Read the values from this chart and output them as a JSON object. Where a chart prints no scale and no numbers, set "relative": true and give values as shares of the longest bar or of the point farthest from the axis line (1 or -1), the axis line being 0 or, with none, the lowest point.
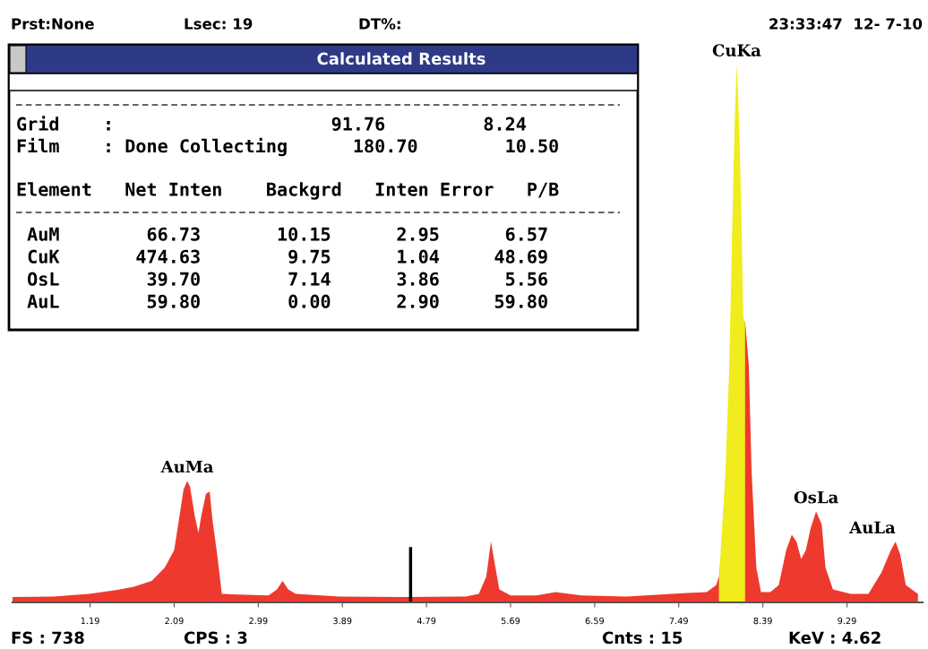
{
  "chart_data": {
    "type": "area",
    "relative": true,
    "xlim": [
      0.36,
      10.1
    ],
    "xticks": [
      1.19,
      2.09,
      2.99,
      3.89,
      4.79,
      5.69,
      6.59,
      7.49,
      8.39,
      9.29
    ],
    "series": [
      {
        "color": "#ee3a2e",
        "x": [
          0.36,
          0.8,
          1.18,
          1.47,
          1.66,
          1.85,
          1.99,
          2.09,
          2.14,
          2.19,
          2.23,
          2.26,
          2.31,
          2.35,
          2.38,
          2.43,
          2.47,
          2.5,
          2.55,
          2.6,
          2.71,
          3.1,
          3.19,
          3.25,
          3.31,
          3.39,
          3.86,
          4.54,
          5.21,
          5.35,
          5.43,
          5.48,
          5.52,
          5.57,
          5.69,
          5.97,
          6.17,
          6.45,
          6.93,
          7.41,
          7.79,
          7.89,
          7.92,
          8.2,
          8.24,
          8.27,
          8.32,
          8.37,
          8.47,
          8.56,
          8.64,
          8.7,
          8.75,
          8.8,
          8.85,
          8.9,
          8.96,
          9.02,
          9.06,
          9.14,
          9.33,
          9.52,
          9.66,
          9.76,
          9.81,
          9.86,
          9.92,
          10.05
        ],
        "values": [
          0.01,
          0.011,
          0.016,
          0.023,
          0.029,
          0.04,
          0.065,
          0.097,
          0.153,
          0.21,
          0.226,
          0.215,
          0.161,
          0.129,
          0.161,
          0.202,
          0.206,
          0.153,
          0.089,
          0.016,
          0.015,
          0.013,
          0.024,
          0.04,
          0.024,
          0.016,
          0.011,
          0.01,
          0.011,
          0.016,
          0.048,
          0.113,
          0.073,
          0.024,
          0.013,
          0.013,
          0.019,
          0.013,
          0.011,
          0.016,
          0.019,
          0.032,
          0.048,
          0.524,
          0.44,
          0.242,
          0.065,
          0.019,
          0.019,
          0.032,
          0.097,
          0.126,
          0.113,
          0.081,
          0.097,
          0.137,
          0.169,
          0.145,
          0.065,
          0.024,
          0.016,
          0.016,
          0.056,
          0.097,
          0.113,
          0.089,
          0.032,
          0.016
        ]
      },
      {
        "color": "#f0ec1e",
        "x": [
          7.92,
          7.95,
          7.99,
          8.01,
          8.03,
          8.06,
          8.08,
          8.09,
          8.11,
          8.12,
          8.14,
          8.16,
          8.18,
          8.2
        ],
        "values": [
          0.04,
          0.129,
          0.242,
          0.34,
          0.432,
          0.674,
          0.831,
          0.9,
          1.0,
          0.968,
          0.871,
          0.723,
          0.532,
          0.516
        ]
      }
    ],
    "ref_lines": [
      {
        "axis": "x",
        "value": 4.62,
        "color": "#000000"
      }
    ],
    "annotations": [
      "Prst:None",
      "Lsec: 19",
      "DT%:",
      "23:33:47  12- 7-10",
      "FS : 738",
      "CPS : 3",
      "Cnts : 15",
      "KeV : 4.62",
      "Calculated Results",
      "Grid    :                    91.76         8.24",
      "Film    : Done Collecting      180.70        10.50",
      "Element   Net Inten    Backgrd   Inten Error   P/B",
      " AuM        66.73       10.15      2.95      6.57",
      " CuK       474.63        9.75      1.04     48.69",
      " OsL        39.70        7.14      3.86      5.56",
      " AuL        59.80        0.00      2.90     59.80",
      {
        "text": "AuMa",
        "x": 2.23,
        "y": 0.226
      },
      {
        "text": "CuKa",
        "x": 8.11,
        "y": 1.0
      },
      {
        "text": "OsLa",
        "x": 8.96,
        "y": 0.169
      },
      {
        "text": "AuLa",
        "x": 9.81,
        "y": 0.113
      }
    ]
  }
}
